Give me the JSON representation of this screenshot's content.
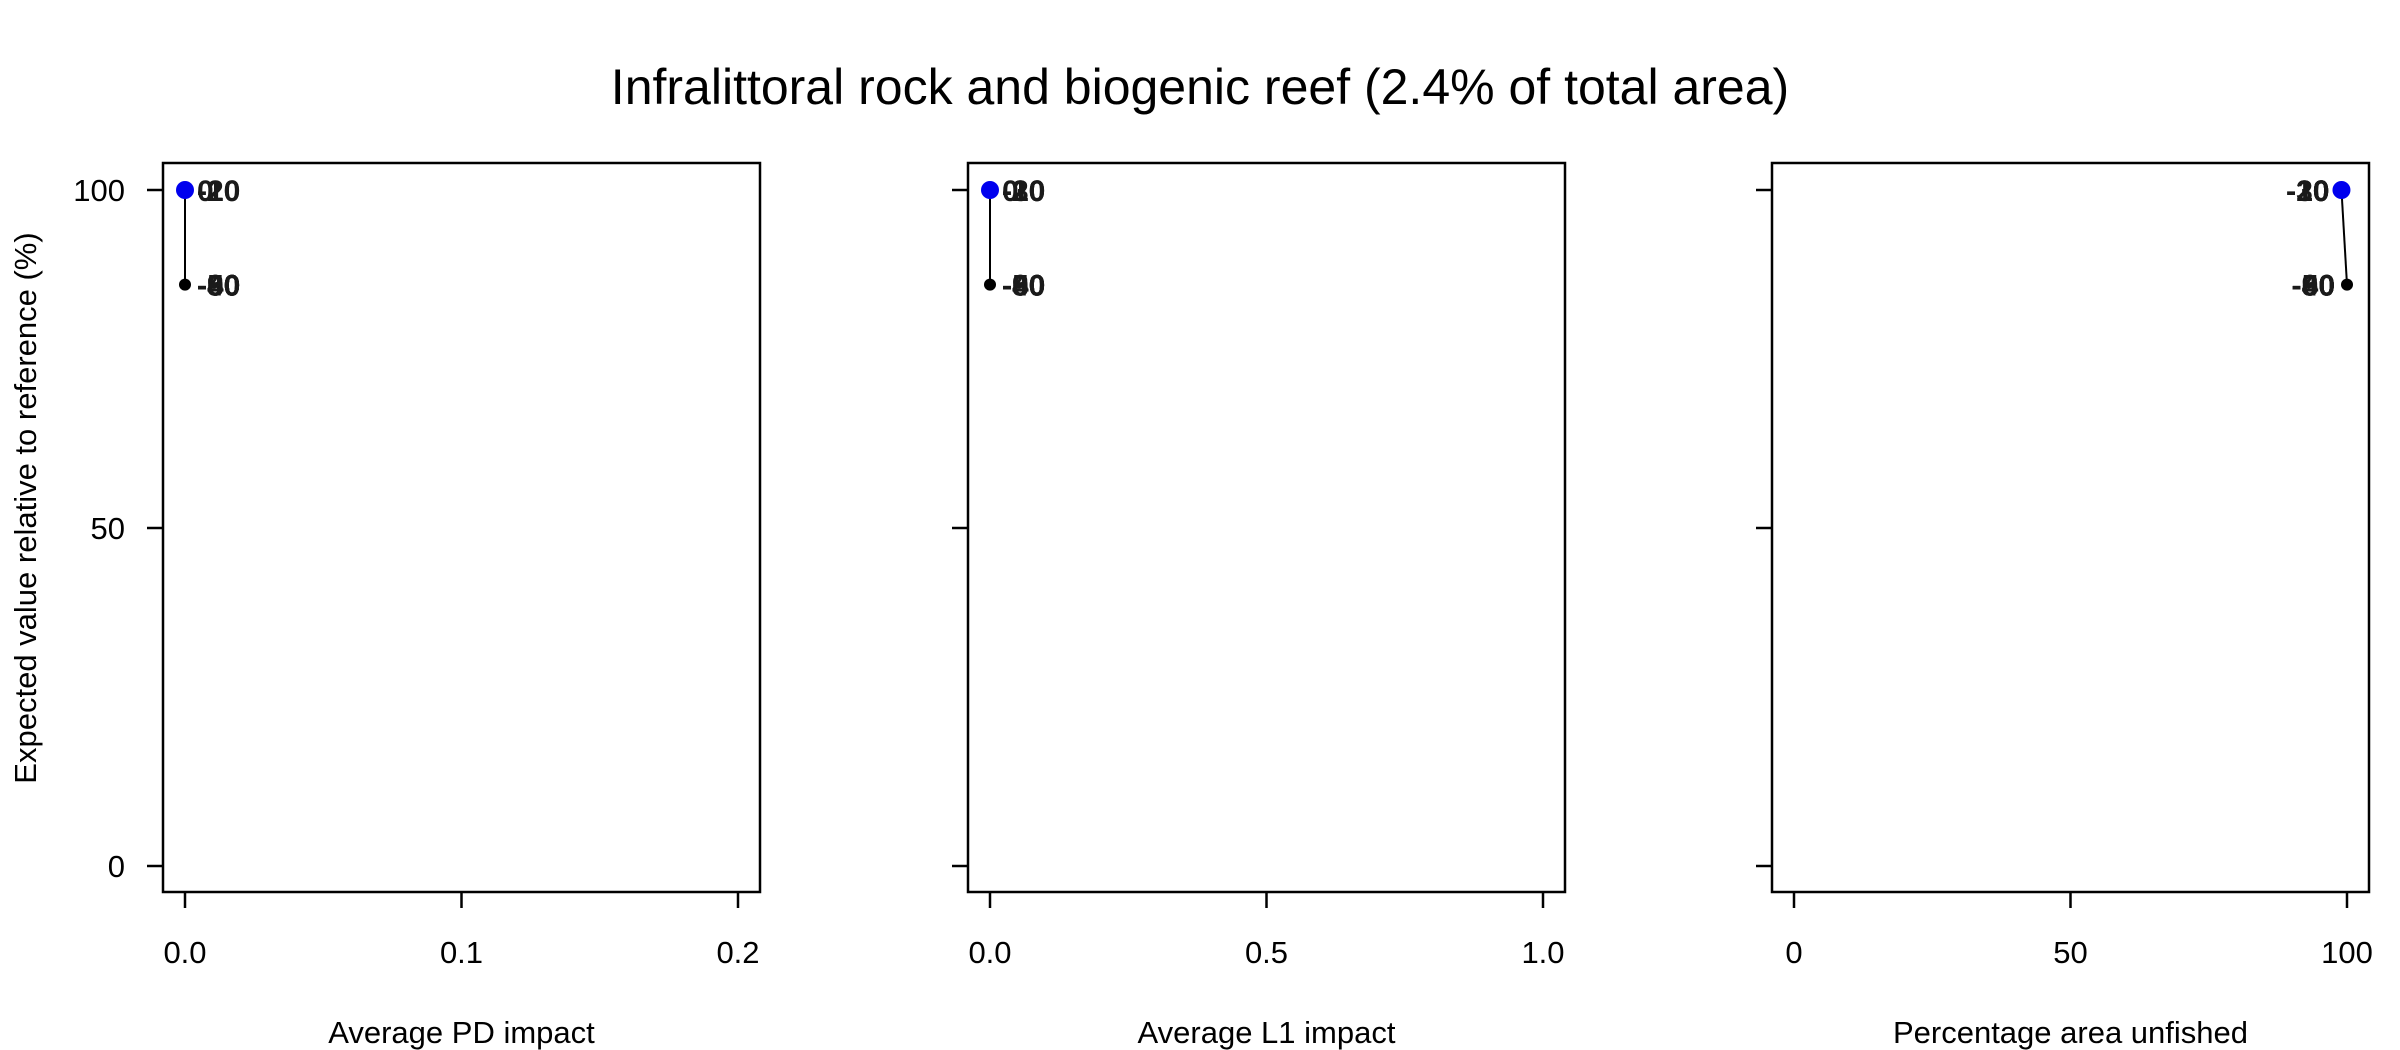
{
  "title": "Infralittoral rock and biogenic reef (2.4% of total area)",
  "chart_data": [
    {
      "type": "line",
      "xlabel": "Average PD impact",
      "ylabel": "Expected value relative to reference (%)",
      "xlim": [
        0,
        0.2
      ],
      "ylim": [
        0,
        100
      ],
      "xticks": [
        "0.0",
        "0.1",
        "0.2"
      ],
      "yticks": [
        "0",
        "50",
        "100"
      ],
      "grid": false,
      "series": [
        {
          "points": [
            {
              "x": 0.0,
              "y": 100,
              "highlight": true
            },
            {
              "x": 0.0,
              "y": 86
            }
          ]
        }
      ],
      "labels": [
        {
          "x": 0.0,
          "y": 100,
          "text": "-20",
          "side": "right"
        },
        {
          "x": 0.0,
          "y": 100,
          "text": "-10",
          "side": "right"
        },
        {
          "x": 0.0,
          "y": 100,
          "text": "0",
          "side": "right"
        },
        {
          "x": 0.0,
          "y": 86,
          "text": "-30",
          "side": "right"
        },
        {
          "x": 0.0,
          "y": 86,
          "text": "-40",
          "side": "right"
        },
        {
          "x": 0.0,
          "y": 86,
          "text": "-50",
          "side": "right"
        },
        {
          "x": 0.0,
          "y": 86,
          "text": "-60",
          "side": "right"
        },
        {
          "x": 0.0,
          "y": 86,
          "text": "-80",
          "side": "right"
        },
        {
          "x": 0.0,
          "y": 86,
          "text": "-90",
          "side": "right"
        }
      ]
    },
    {
      "type": "line",
      "xlabel": "Average L1 impact",
      "ylabel": "",
      "xlim": [
        0,
        1.0
      ],
      "ylim": [
        0,
        100
      ],
      "xticks": [
        "0.0",
        "0.5",
        "1.0"
      ],
      "yticks": [],
      "grid": false,
      "series": [
        {
          "points": [
            {
              "x": 0.0,
              "y": 100,
              "highlight": true
            },
            {
              "x": 0.0,
              "y": 86
            }
          ]
        }
      ],
      "labels": [
        {
          "x": 0.0,
          "y": 100,
          "text": "-20",
          "side": "right"
        },
        {
          "x": 0.0,
          "y": 100,
          "text": "-10",
          "side": "right"
        },
        {
          "x": 0.0,
          "y": 100,
          "text": "-30",
          "side": "right"
        },
        {
          "x": 0.0,
          "y": 100,
          "text": "0",
          "side": "right"
        },
        {
          "x": 0.0,
          "y": 86,
          "text": "-40",
          "side": "right"
        },
        {
          "x": 0.0,
          "y": 86,
          "text": "-50",
          "side": "right"
        },
        {
          "x": 0.0,
          "y": 86,
          "text": "-60",
          "side": "right"
        },
        {
          "x": 0.0,
          "y": 86,
          "text": "-80",
          "side": "right"
        },
        {
          "x": 0.0,
          "y": 86,
          "text": "-90",
          "side": "right"
        }
      ]
    },
    {
      "type": "line",
      "xlabel": "Percentage area unfished",
      "ylabel": "",
      "xlim": [
        0,
        100
      ],
      "ylim": [
        0,
        100
      ],
      "xticks": [
        "0",
        "50",
        "100"
      ],
      "yticks": [],
      "grid": false,
      "series": [
        {
          "points": [
            {
              "x": 99,
              "y": 100,
              "highlight": true
            },
            {
              "x": 100,
              "y": 86
            }
          ]
        }
      ],
      "labels": [
        {
          "x": 99,
          "y": 100,
          "text": "-20",
          "side": "left"
        },
        {
          "x": 99,
          "y": 100,
          "text": "-10",
          "side": "left"
        },
        {
          "x": 99,
          "y": 100,
          "text": "-30",
          "side": "left"
        },
        {
          "x": 99,
          "y": 100,
          "text": "0",
          "side": "left"
        },
        {
          "x": 100,
          "y": 86,
          "text": "-40",
          "side": "left"
        },
        {
          "x": 100,
          "y": 86,
          "text": "-50",
          "side": "left"
        },
        {
          "x": 100,
          "y": 86,
          "text": "-60",
          "side": "left"
        },
        {
          "x": 100,
          "y": 86,
          "text": "-80",
          "side": "left"
        },
        {
          "x": 100,
          "y": 86,
          "text": "-90",
          "side": "left"
        }
      ]
    }
  ],
  "colors": {
    "highlight": "#0000ee",
    "points": "#000000"
  }
}
